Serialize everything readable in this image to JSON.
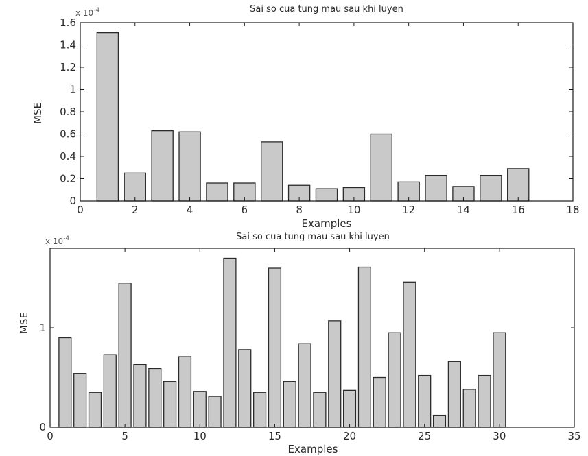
{
  "chart_data": [
    {
      "type": "bar",
      "title": "Sai so cua tung mau sau khi luyen",
      "xlabel": "Examples",
      "ylabel": "MSE",
      "exponent_base": "x 10",
      "exponent_power": "-4",
      "x": [
        1,
        2,
        3,
        4,
        5,
        6,
        7,
        8,
        9,
        10,
        11,
        12,
        13,
        14,
        15,
        16
      ],
      "values": [
        1.51,
        0.25,
        0.63,
        0.62,
        0.16,
        0.16,
        0.53,
        0.14,
        0.11,
        0.12,
        0.6,
        0.17,
        0.23,
        0.13,
        0.23,
        0.29
      ],
      "xlim": [
        0,
        18
      ],
      "ylim": [
        0,
        1.6
      ],
      "xticks": [
        0,
        2,
        4,
        6,
        8,
        10,
        12,
        14,
        16,
        18
      ],
      "yticks": [
        0,
        0.2,
        0.4,
        0.6,
        0.8,
        1,
        1.2,
        1.4,
        1.6
      ],
      "xticklabels": [
        "0",
        "2",
        "4",
        "6",
        "8",
        "10",
        "12",
        "14",
        "16",
        "18"
      ],
      "yticklabels": [
        "0",
        "0.2",
        "0.4",
        "0.6",
        "0.8",
        "1",
        "1.2",
        "1.4",
        "1.6"
      ],
      "grid": false,
      "colors": {
        "bar_fill": "#c9c9c9",
        "bar_edge": "#2b2b2b"
      }
    },
    {
      "type": "bar",
      "title": "Sai so cua tung mau sau khi luyen",
      "xlabel": "Examples",
      "ylabel": "MSE",
      "exponent_base": "x 10",
      "exponent_power": "-4",
      "x": [
        1,
        2,
        3,
        4,
        5,
        6,
        7,
        8,
        9,
        10,
        11,
        12,
        13,
        14,
        15,
        16,
        17,
        18,
        19,
        20,
        21,
        22,
        23,
        24,
        25,
        26,
        27,
        28,
        29,
        30
      ],
      "values": [
        0.9,
        0.54,
        0.35,
        0.73,
        1.45,
        0.63,
        0.59,
        0.46,
        0.71,
        0.36,
        0.31,
        1.7,
        0.78,
        0.35,
        1.6,
        0.46,
        0.84,
        0.35,
        1.07,
        0.37,
        1.61,
        0.5,
        0.95,
        1.46,
        0.52,
        0.12,
        0.66,
        0.38,
        0.52,
        0.95
      ],
      "xlim": [
        0,
        35
      ],
      "ylim": [
        0,
        1.8
      ],
      "xticks": [
        0,
        5,
        10,
        15,
        20,
        25,
        30,
        35
      ],
      "yticks": [
        0,
        1
      ],
      "xticklabels": [
        "0",
        "5",
        "10",
        "15",
        "20",
        "25",
        "30",
        "35"
      ],
      "yticklabels": [
        "0",
        "1"
      ],
      "grid": false,
      "colors": {
        "bar_fill": "#c9c9c9",
        "bar_edge": "#2b2b2b"
      }
    }
  ]
}
